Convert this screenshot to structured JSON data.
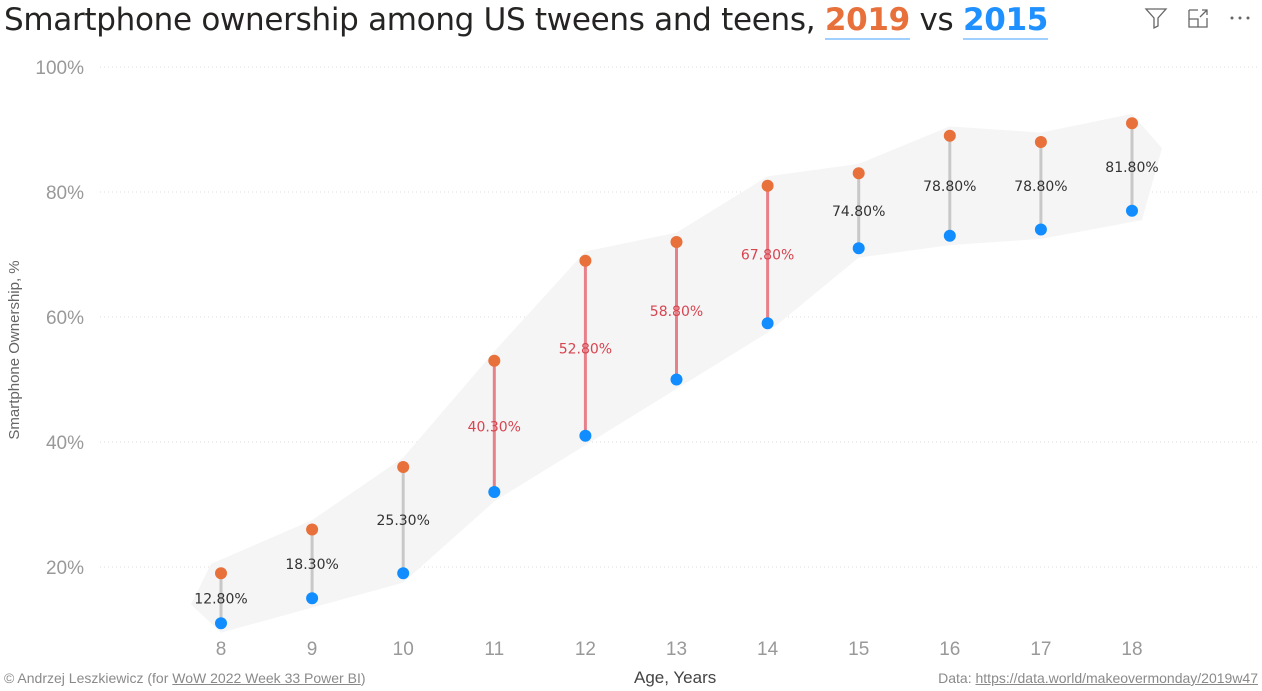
{
  "title": {
    "prefix": "Smartphone ownership among US tweens and teens,",
    "year_a": "2019",
    "vs": "vs",
    "year_b": "2015"
  },
  "toolbar": {
    "icons": [
      "filter-icon",
      "focus-mode-icon",
      "more-options-icon"
    ]
  },
  "footer": {
    "credit_prefix": "© Andrzej Leszkiewicz (for ",
    "credit_link": "WoW 2022 Week 33 Power BI",
    "credit_suffix": ")",
    "data_prefix": "Data: ",
    "data_link": "https://data.world/makeovermonday/2019w47"
  },
  "chart_data": {
    "type": "dumbbell",
    "xlabel": "Age, Years",
    "ylabel": "Smartphone Ownership, %",
    "ylim": [
      0,
      100
    ],
    "yticks": [
      "20%",
      "40%",
      "60%",
      "80%",
      "100%"
    ],
    "categories": [
      "8",
      "9",
      "10",
      "11",
      "12",
      "13",
      "14",
      "15",
      "16",
      "17",
      "18"
    ],
    "series": [
      {
        "name": "2019",
        "color": "#E8703A",
        "values": [
          19,
          26,
          36,
          53,
          69,
          72,
          81,
          83,
          89,
          88,
          91
        ]
      },
      {
        "name": "2015",
        "color": "#118DFF",
        "values": [
          11,
          15,
          19,
          32,
          41,
          50,
          59,
          71,
          73,
          74,
          77
        ]
      }
    ],
    "data_labels": [
      "12.80%",
      "18.30%",
      "25.30%",
      "40.30%",
      "52.80%",
      "58.80%",
      "67.80%",
      "74.80%",
      "78.80%",
      "78.80%",
      "81.80%"
    ],
    "highlight_categories": [
      "11",
      "12",
      "13",
      "14"
    ],
    "colors": {
      "highlight": "#E8808A",
      "highlight_label": "#D64550",
      "connector": "#C8C8C8",
      "band": "#F5F5F5"
    },
    "grid": true
  }
}
